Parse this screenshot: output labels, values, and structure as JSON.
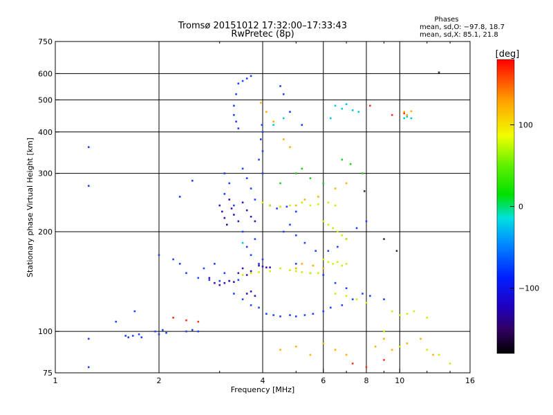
{
  "chart_data": {
    "type": "scatter",
    "title": "Tromsø 20151012 17:32:00–17:33:43",
    "subtitle": "RwPretec (8p)",
    "xlabel": "Frequency [MHz]",
    "ylabel": "Stationary phase Virtual Height [km]",
    "x_scale": "log",
    "y_scale": "log",
    "xlim": [
      1,
      16
    ],
    "ylim": [
      75,
      750
    ],
    "x_ticks": [
      1,
      2,
      4,
      6,
      8,
      10,
      16
    ],
    "x_tick_labels": [
      "1",
      "2",
      "4",
      "6",
      "8",
      "10",
      "16"
    ],
    "y_ticks": [
      75,
      100,
      200,
      300,
      400,
      500,
      600,
      750
    ],
    "y_tick_labels": [
      "75",
      "100",
      "200",
      "300",
      "400",
      "500",
      "600",
      "750"
    ],
    "grid_x": [
      2,
      4,
      6,
      8,
      10
    ],
    "grid_y": [
      100,
      200,
      300,
      400,
      500,
      600
    ],
    "phase_legend": {
      "title": "Phases",
      "line_o": "mean, sd,O: −97.8, 18.7",
      "line_x": "mean, sd,X:  85.1, 21.8"
    },
    "colorbar": {
      "label": "[deg]",
      "range": [
        -180,
        180
      ],
      "ticks": [
        100,
        0,
        -100
      ],
      "tick_labels": [
        "100",
        "0",
        "−100"
      ]
    },
    "series": [
      {
        "color": "#2040ff",
        "points": [
          [
            1.25,
            360
          ],
          [
            1.25,
            275
          ],
          [
            1.25,
            95
          ],
          [
            1.25,
            78
          ],
          [
            1.5,
            107
          ],
          [
            1.6,
            97
          ],
          [
            1.63,
            96
          ],
          [
            1.68,
            97
          ],
          [
            1.7,
            115
          ],
          [
            1.75,
            98
          ],
          [
            1.78,
            96
          ],
          [
            1.95,
            100
          ],
          [
            2.0,
            98
          ],
          [
            2.05,
            101
          ],
          [
            2.1,
            99
          ],
          [
            2.4,
            100
          ],
          [
            2.5,
            101
          ],
          [
            2.6,
            100
          ],
          [
            2.3,
            255
          ],
          [
            2.5,
            285
          ],
          [
            2.0,
            170
          ],
          [
            2.2,
            165
          ],
          [
            2.3,
            160
          ],
          [
            2.4,
            150
          ],
          [
            2.6,
            145
          ],
          [
            2.8,
            143
          ],
          [
            3.0,
            142
          ],
          [
            3.2,
            142
          ],
          [
            3.4,
            143
          ],
          [
            2.7,
            155
          ],
          [
            2.9,
            160
          ],
          [
            3.1,
            150
          ],
          [
            3.3,
            480
          ],
          [
            3.35,
            520
          ],
          [
            3.4,
            560
          ],
          [
            3.5,
            570
          ],
          [
            3.6,
            580
          ],
          [
            3.7,
            590
          ],
          [
            3.3,
            450
          ],
          [
            3.35,
            430
          ],
          [
            3.4,
            410
          ],
          [
            3.1,
            300
          ],
          [
            3.1,
            260
          ],
          [
            3.2,
            280
          ],
          [
            3.3,
            240
          ],
          [
            3.5,
            310
          ],
          [
            3.6,
            290
          ],
          [
            3.7,
            270
          ],
          [
            3.8,
            250
          ],
          [
            3.9,
            330
          ],
          [
            3.95,
            380
          ],
          [
            3.98,
            420
          ],
          [
            4.0,
            400
          ],
          [
            4.0,
            350
          ],
          [
            4.0,
            300
          ],
          [
            3.5,
            200
          ],
          [
            3.6,
            180
          ],
          [
            3.7,
            170
          ],
          [
            3.8,
            190
          ],
          [
            3.9,
            160
          ],
          [
            4.0,
            165
          ],
          [
            3.3,
            130
          ],
          [
            3.5,
            125
          ],
          [
            3.7,
            120
          ],
          [
            3.9,
            118
          ],
          [
            4.1,
            113
          ],
          [
            4.3,
            112
          ],
          [
            4.5,
            111
          ],
          [
            4.8,
            112
          ],
          [
            5.0,
            111
          ],
          [
            5.3,
            112
          ],
          [
            5.6,
            113
          ],
          [
            6.0,
            115
          ],
          [
            6.3,
            118
          ],
          [
            6.8,
            120
          ],
          [
            7.3,
            125
          ],
          [
            7.8,
            130
          ],
          [
            8.2,
            128
          ],
          [
            9.0,
            125
          ],
          [
            4.2,
            240
          ],
          [
            4.4,
            235
          ],
          [
            4.7,
            238
          ],
          [
            5.0,
            230
          ],
          [
            4.6,
            200
          ],
          [
            4.8,
            210
          ],
          [
            5.0,
            195
          ],
          [
            5.3,
            185
          ],
          [
            5.7,
            175
          ],
          [
            6.2,
            175
          ],
          [
            6.6,
            180
          ],
          [
            7.0,
            190
          ],
          [
            7.5,
            205
          ],
          [
            8.0,
            215
          ],
          [
            5.0,
            160
          ],
          [
            5.5,
            150
          ],
          [
            6.0,
            148
          ],
          [
            6.5,
            140
          ],
          [
            7.0,
            135
          ],
          [
            4.5,
            550
          ],
          [
            4.6,
            520
          ],
          [
            4.8,
            460
          ],
          [
            5.2,
            420
          ]
        ]
      },
      {
        "color": "#3c10b0",
        "points": [
          [
            3.0,
            240
          ],
          [
            3.05,
            230
          ],
          [
            3.1,
            220
          ],
          [
            3.15,
            210
          ],
          [
            3.2,
            250
          ],
          [
            3.25,
            235
          ],
          [
            3.3,
            225
          ],
          [
            3.4,
            215
          ],
          [
            3.5,
            245
          ],
          [
            3.6,
            232
          ],
          [
            3.7,
            222
          ],
          [
            3.8,
            215
          ],
          [
            2.8,
            145
          ],
          [
            2.9,
            140
          ],
          [
            3.0,
            138
          ],
          [
            3.1,
            140
          ],
          [
            3.2,
            142
          ],
          [
            3.3,
            141
          ],
          [
            3.4,
            150
          ],
          [
            3.5,
            155
          ],
          [
            3.6,
            148
          ],
          [
            3.7,
            152
          ],
          [
            3.9,
            158
          ],
          [
            4.0,
            157
          ],
          [
            4.1,
            156
          ],
          [
            4.2,
            156
          ],
          [
            3.6,
            130
          ],
          [
            3.7,
            132
          ],
          [
            3.8,
            128
          ]
        ]
      },
      {
        "color": "#00c8d8",
        "points": [
          [
            6.5,
            480
          ],
          [
            6.8,
            470
          ],
          [
            7.0,
            485
          ],
          [
            7.3,
            465
          ],
          [
            6.3,
            440
          ],
          [
            10.3,
            440
          ],
          [
            10.5,
            445
          ],
          [
            10.8,
            440
          ],
          [
            7.6,
            460
          ],
          [
            3.5,
            185
          ],
          [
            4.3,
            420
          ],
          [
            4.6,
            440
          ]
        ]
      },
      {
        "color": "#20d020",
        "points": [
          [
            5.0,
            300
          ],
          [
            5.5,
            290
          ],
          [
            6.0,
            280
          ],
          [
            6.8,
            330
          ],
          [
            7.2,
            320
          ],
          [
            7.8,
            300
          ],
          [
            4.5,
            280
          ],
          [
            5.2,
            310
          ]
        ]
      },
      {
        "color": "#ccee00",
        "points": [
          [
            4.0,
            245
          ],
          [
            4.2,
            240
          ],
          [
            4.5,
            238
          ],
          [
            4.8,
            240
          ],
          [
            5.2,
            245
          ],
          [
            5.5,
            240
          ],
          [
            5.8,
            242
          ],
          [
            6.2,
            245
          ],
          [
            6.5,
            240
          ],
          [
            6.0,
            215
          ],
          [
            6.2,
            210
          ],
          [
            6.4,
            205
          ],
          [
            6.6,
            200
          ],
          [
            6.8,
            195
          ],
          [
            7.0,
            190
          ],
          [
            6.0,
            165
          ],
          [
            6.2,
            162
          ],
          [
            6.4,
            160
          ],
          [
            6.6,
            162
          ],
          [
            6.8,
            158
          ],
          [
            7.0,
            160
          ],
          [
            4.5,
            155
          ],
          [
            4.8,
            153
          ],
          [
            5.0,
            152
          ],
          [
            5.2,
            151
          ],
          [
            5.5,
            150
          ],
          [
            5.8,
            150
          ],
          [
            3.5,
            148
          ],
          [
            3.7,
            150
          ],
          [
            3.9,
            151
          ],
          [
            4.2,
            152
          ],
          [
            6.5,
            130
          ],
          [
            7.0,
            128
          ],
          [
            7.5,
            125
          ],
          [
            8.0,
            122
          ],
          [
            9.5,
            115
          ],
          [
            10.0,
            112
          ],
          [
            10.5,
            113
          ],
          [
            11.0,
            115
          ],
          [
            12.0,
            110
          ],
          [
            9.0,
            100
          ],
          [
            10.0,
            90
          ],
          [
            12.0,
            88
          ],
          [
            13.0,
            85
          ],
          [
            14.0,
            80
          ]
        ]
      },
      {
        "color": "#ffb000",
        "points": [
          [
            3.95,
            490
          ],
          [
            4.1,
            460
          ],
          [
            4.3,
            430
          ],
          [
            4.6,
            380
          ],
          [
            4.8,
            360
          ],
          [
            5.0,
            240
          ],
          [
            5.3,
            250
          ],
          [
            5.8,
            255
          ],
          [
            6.5,
            270
          ],
          [
            7.0,
            280
          ],
          [
            5.2,
            160
          ],
          [
            5.6,
            158
          ],
          [
            6.0,
            155
          ],
          [
            5.0,
            155
          ],
          [
            10.3,
            460
          ],
          [
            10.5,
            450
          ],
          [
            10.8,
            462
          ],
          [
            8.5,
            90
          ],
          [
            9.0,
            95
          ],
          [
            9.5,
            88
          ],
          [
            10.5,
            92
          ],
          [
            11.5,
            95
          ],
          [
            12.5,
            85
          ],
          [
            4.5,
            88
          ],
          [
            5.0,
            90
          ],
          [
            5.5,
            85
          ],
          [
            6.0,
            92
          ],
          [
            6.5,
            88
          ],
          [
            7.0,
            85
          ]
        ]
      },
      {
        "color": "#ff3020",
        "points": [
          [
            2.2,
            110
          ],
          [
            2.4,
            108
          ],
          [
            2.6,
            107
          ],
          [
            8.2,
            480
          ],
          [
            9.5,
            450
          ],
          [
            10.3,
            455
          ],
          [
            7.3,
            80
          ],
          [
            8.0,
            78
          ],
          [
            9.0,
            82
          ]
        ]
      },
      {
        "color": "#303040",
        "points": [
          [
            7.9,
            265
          ],
          [
            13.0,
            605
          ],
          [
            9.0,
            190
          ],
          [
            9.8,
            175
          ]
        ]
      }
    ]
  }
}
